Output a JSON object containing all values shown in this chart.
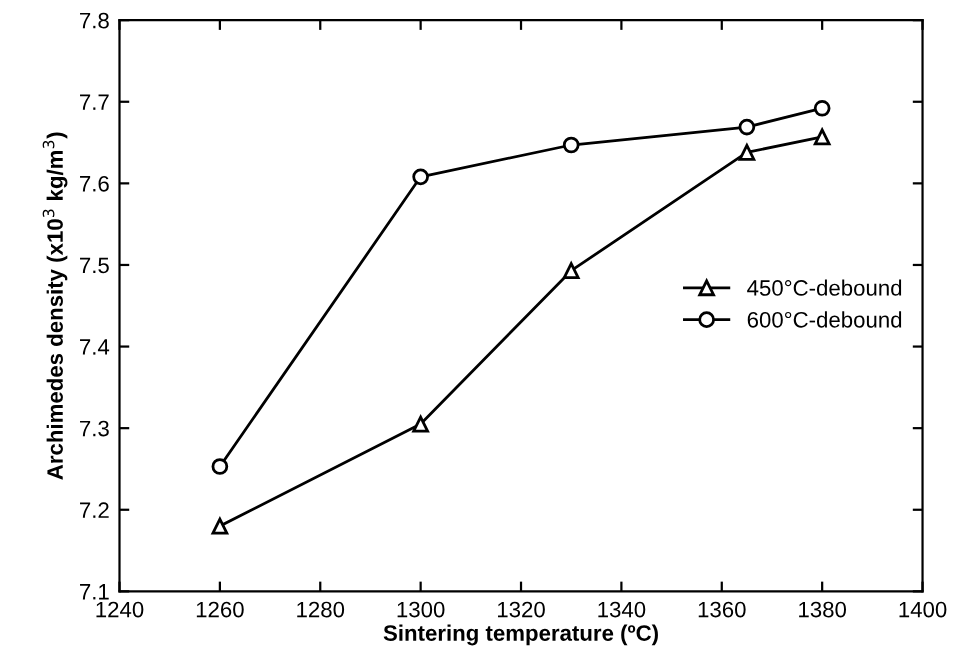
{
  "chart_data": {
    "type": "line",
    "xlabel": "Sintering temperature (ºC)",
    "ylabel": "Archimedes density (x10$^{3}$ kg/m$^{3}$)",
    "x": [
      1260,
      1300,
      1330,
      1365,
      1380
    ],
    "series": [
      {
        "name": "450°C-debound",
        "color": "#000000",
        "marker": "triangle",
        "values": [
          7.18,
          7.305,
          7.493,
          7.638,
          7.657
        ]
      },
      {
        "name": "600°C-debound",
        "color": "#000000",
        "marker": "circle",
        "values": [
          7.253,
          7.608,
          7.647,
          7.669,
          7.692
        ]
      }
    ],
    "xlim": [
      1240,
      1400
    ],
    "xticks": [
      1240,
      1260,
      1280,
      1300,
      1320,
      1340,
      1360,
      1380,
      1400
    ],
    "ylim": [
      7.1,
      7.8
    ],
    "yticks": [
      7.1,
      7.2,
      7.3,
      7.4,
      7.5,
      7.6,
      7.7,
      7.8
    ],
    "grid": false,
    "legend": "center right",
    "line_style": "solid"
  }
}
